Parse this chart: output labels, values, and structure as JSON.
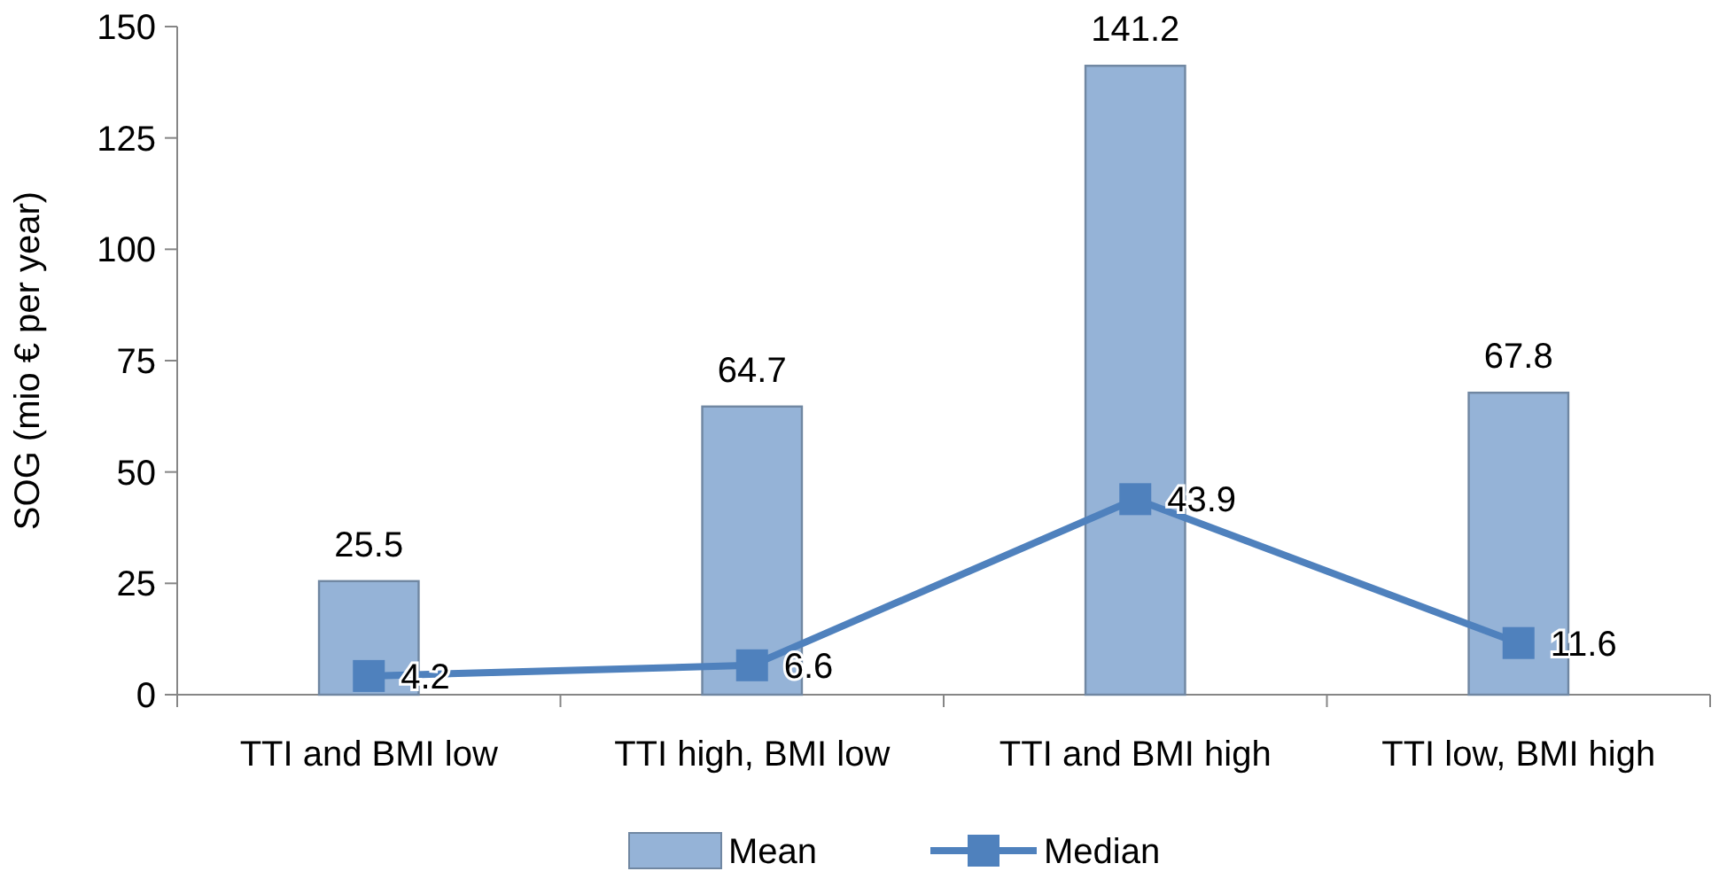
{
  "chart_data": {
    "type": "bar",
    "ylabel": "SOG (mio € per year)",
    "categories": [
      "TTI and BMI low",
      "TTI high, BMI low",
      "TTI and BMI high",
      "TTI low, BMI high"
    ],
    "series": [
      {
        "name": "Mean",
        "color": "#95b3d7",
        "values": [
          25.5,
          64.7,
          141.2,
          67.8
        ]
      },
      {
        "name": "Median",
        "type": "line",
        "color": "#4f81bd",
        "values": [
          4.2,
          6.6,
          43.9,
          11.6
        ]
      }
    ],
    "ylim": [
      0,
      150
    ],
    "yticks": [
      0,
      25,
      50,
      75,
      100,
      125,
      150
    ],
    "grid": false,
    "legend": "bottom",
    "marker": "square",
    "line_style": "solid",
    "data_labels": true
  }
}
